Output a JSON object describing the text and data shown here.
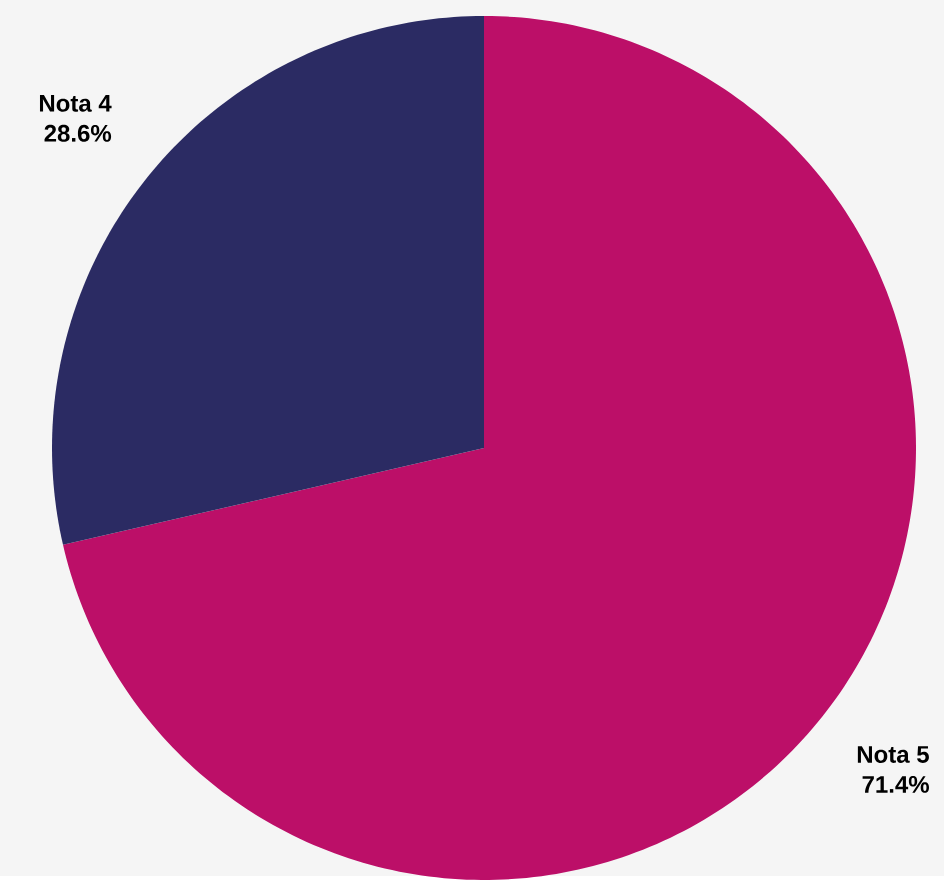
{
  "chart_data": {
    "type": "pie",
    "categories": [
      "Nota 5",
      "Nota 4"
    ],
    "values": [
      71.4,
      28.6
    ],
    "colors": [
      "#bc0f68",
      "#2b2b63"
    ],
    "value_labels": [
      "71.4%",
      "28.6%"
    ]
  }
}
